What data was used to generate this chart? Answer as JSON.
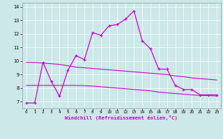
{
  "xlabel": "Windchill (Refroidissement éolien,°C)",
  "bg_color": "#cce8e8",
  "line_color": "#cc00cc",
  "xlim": [
    -0.5,
    23.5
  ],
  "ylim": [
    6.5,
    14.3
  ],
  "yticks": [
    7,
    8,
    9,
    10,
    11,
    12,
    13,
    14
  ],
  "xticks": [
    0,
    1,
    2,
    3,
    4,
    5,
    6,
    7,
    8,
    9,
    10,
    11,
    12,
    13,
    14,
    15,
    16,
    17,
    18,
    19,
    20,
    21,
    22,
    23
  ],
  "series1_x": [
    0,
    1,
    2,
    3,
    4,
    5,
    6,
    7,
    8,
    9,
    10,
    11,
    12,
    13,
    14,
    15,
    16,
    17,
    18,
    19,
    20,
    21,
    22,
    23
  ],
  "series1_y": [
    6.9,
    6.9,
    9.9,
    8.5,
    7.4,
    9.3,
    10.4,
    10.1,
    12.1,
    11.9,
    12.6,
    12.7,
    13.1,
    13.7,
    11.5,
    10.9,
    9.4,
    9.4,
    8.2,
    7.9,
    7.9,
    7.5,
    7.5,
    7.5
  ],
  "series2_x": [
    0,
    1,
    2,
    3,
    4,
    5,
    6,
    7,
    8,
    9,
    10,
    11,
    12,
    13,
    14,
    15,
    16,
    17,
    18,
    19,
    20,
    21,
    22,
    23
  ],
  "series2_y": [
    9.9,
    9.9,
    9.85,
    9.8,
    9.75,
    9.65,
    9.55,
    9.5,
    9.45,
    9.4,
    9.35,
    9.3,
    9.25,
    9.2,
    9.15,
    9.1,
    9.05,
    9.0,
    8.9,
    8.85,
    8.75,
    8.7,
    8.65,
    8.6
  ],
  "series3_x": [
    0,
    1,
    2,
    3,
    4,
    5,
    6,
    7,
    8,
    9,
    10,
    11,
    12,
    13,
    14,
    15,
    16,
    17,
    18,
    19,
    20,
    21,
    22,
    23
  ],
  "series3_y": [
    8.2,
    8.2,
    8.2,
    8.2,
    8.2,
    8.2,
    8.2,
    8.18,
    8.15,
    8.1,
    8.05,
    8.0,
    7.95,
    7.9,
    7.85,
    7.8,
    7.7,
    7.65,
    7.6,
    7.55,
    7.5,
    7.45,
    7.45,
    7.42
  ]
}
